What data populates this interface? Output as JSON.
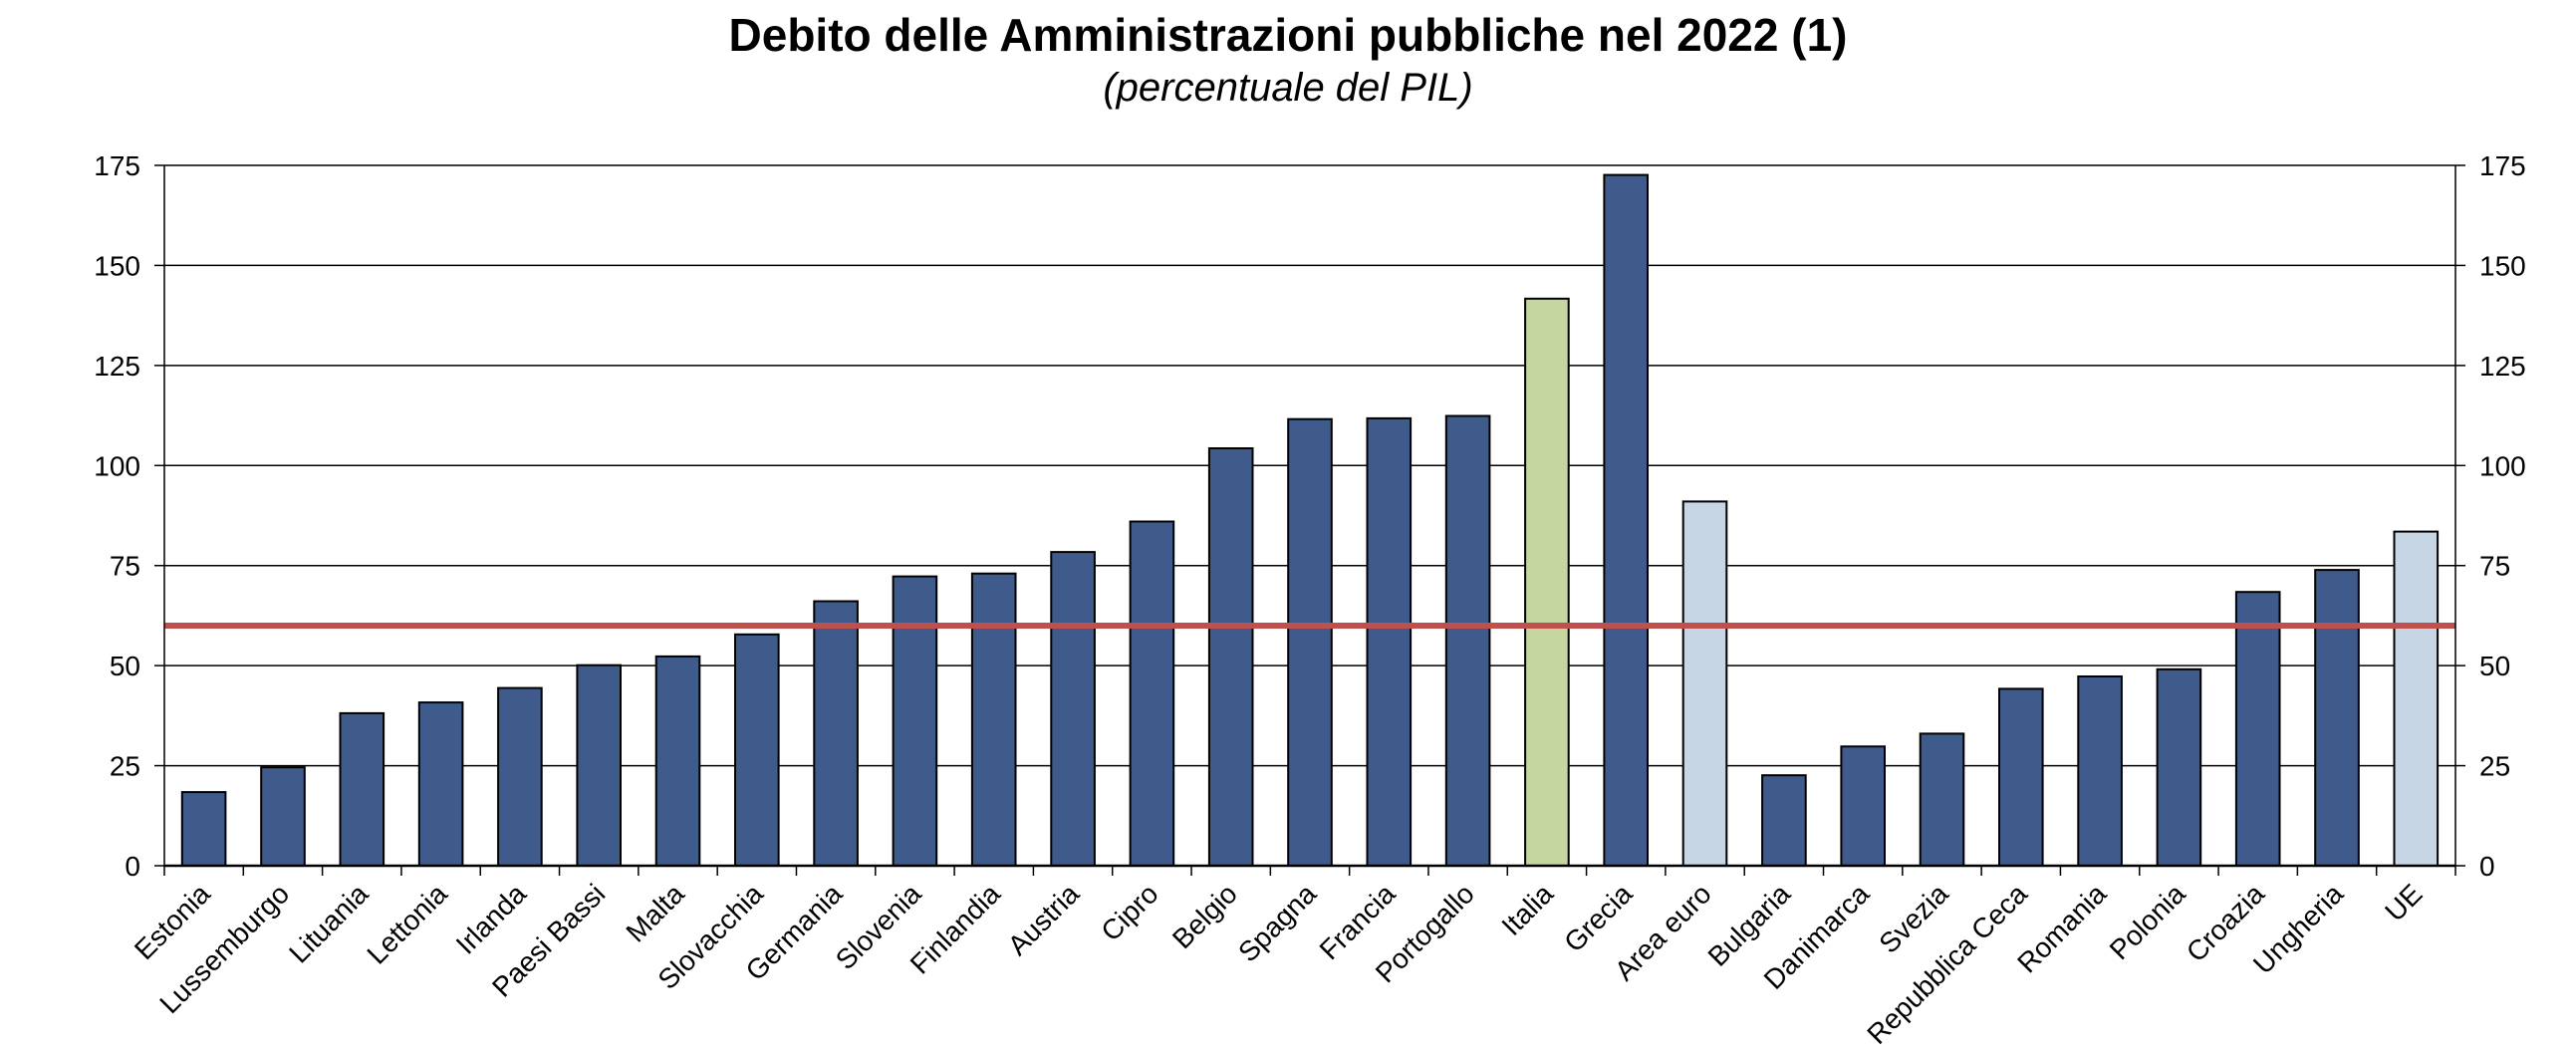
{
  "chart_data": {
    "type": "bar",
    "title": "Debito delle Amministrazioni pubbliche nel 2022 (1)",
    "subtitle": "(percentuale del PIL)",
    "categories": [
      "Estonia",
      "Lussemburgo",
      "Lituania",
      "Lettonia",
      "Irlanda",
      "Paesi Bassi",
      "Malta",
      "Slovacchia",
      "Germania",
      "Slovenia",
      "Finlandia",
      "Austria",
      "Cipro",
      "Belgio",
      "Spagna",
      "Francia",
      "Portogallo",
      "Italia",
      "Grecia",
      "Area euro",
      "Bulgaria",
      "Danimarca",
      "Svezia",
      "Repubblica Ceca",
      "Romania",
      "Polonia",
      "Croazia",
      "Ungheria",
      "UE"
    ],
    "values": [
      18.4,
      24.6,
      38.1,
      40.8,
      44.4,
      50.1,
      52.3,
      57.8,
      66.1,
      72.3,
      73.0,
      78.4,
      86.0,
      104.3,
      111.6,
      111.8,
      112.4,
      141.7,
      172.6,
      91.0,
      22.6,
      29.8,
      33.0,
      44.2,
      47.3,
      49.1,
      68.4,
      73.9,
      83.5
    ],
    "bar_colors": [
      "#3e5b8c",
      "#3e5b8c",
      "#3e5b8c",
      "#3e5b8c",
      "#3e5b8c",
      "#3e5b8c",
      "#3e5b8c",
      "#3e5b8c",
      "#3e5b8c",
      "#3e5b8c",
      "#3e5b8c",
      "#3e5b8c",
      "#3e5b8c",
      "#3e5b8c",
      "#3e5b8c",
      "#3e5b8c",
      "#3e5b8c",
      "#c5d6a0",
      "#3e5b8c",
      "#c6d6e4",
      "#3e5b8c",
      "#3e5b8c",
      "#3e5b8c",
      "#3e5b8c",
      "#3e5b8c",
      "#3e5b8c",
      "#3e5b8c",
      "#3e5b8c",
      "#c6d6e4"
    ],
    "ylim": [
      0,
      175
    ],
    "yticks": [
      0,
      25,
      50,
      75,
      100,
      125,
      150,
      175
    ],
    "reference_line": {
      "value": 60,
      "color": "#c0504d"
    },
    "grid": true,
    "dual_y_axis": true
  }
}
